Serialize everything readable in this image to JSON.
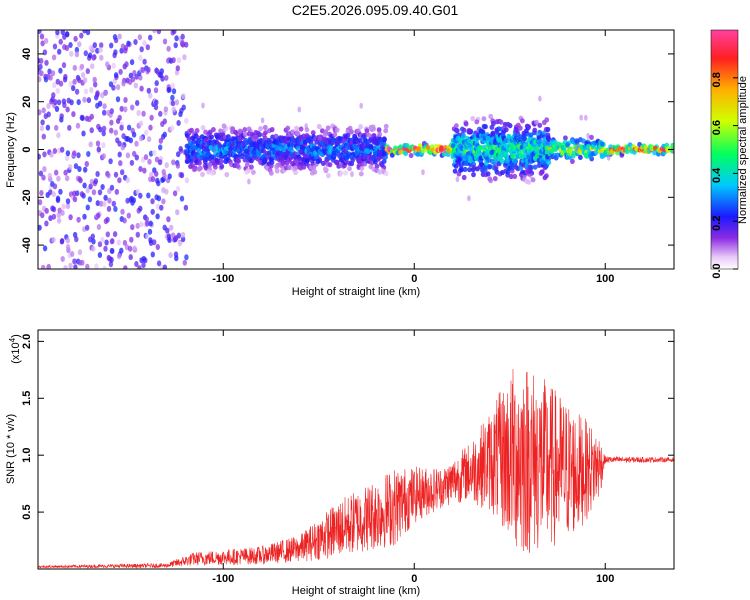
{
  "title": "C2E5.2026.095.09.40.G01",
  "colors": {
    "snr_line": "#ee2222",
    "axes": "#000000",
    "background": "#ffffff"
  },
  "chart_data": [
    {
      "type": "heatmap",
      "name": "spectrogram",
      "xlabel": "Height of straight line (km)",
      "ylabel": "Frequency (Hz)",
      "xlim": [
        -197,
        136
      ],
      "ylim": [
        -50,
        50
      ],
      "xticks": [
        -100,
        0,
        100
      ],
      "yticks": [
        -40,
        -20,
        0,
        20,
        40
      ],
      "colorbar": {
        "label": "Normalized spectral amplitude",
        "range": [
          0,
          1
        ],
        "ticks": [
          0.0,
          0.2,
          0.4,
          0.6,
          0.8
        ]
      },
      "regions": [
        {
          "x": [
            -197,
            -120
          ],
          "description_value": "noise",
          "freq_spread": 50,
          "amplitude": 0.15
        },
        {
          "x": [
            -120,
            -15
          ],
          "freq_spread": 8,
          "amplitude": 0.3
        },
        {
          "x": [
            -15,
            20
          ],
          "freq_spread": 2,
          "amplitude": 0.9
        },
        {
          "x": [
            20,
            70
          ],
          "freq_spread": 10,
          "amplitude": 0.45
        },
        {
          "x": [
            70,
            100
          ],
          "freq_spread": 4,
          "amplitude": 0.6
        },
        {
          "x": [
            100,
            136
          ],
          "freq_spread": 2,
          "amplitude": 0.8
        }
      ]
    },
    {
      "type": "line",
      "name": "snr",
      "xlabel": "Height of straight line (km)",
      "ylabel": "SNR (10 * v/v)",
      "multiplier_label": "(x10",
      "multiplier_exp": "4",
      "multiplier_close": ")",
      "xlim": [
        -197,
        136
      ],
      "ylim": [
        0,
        2.1
      ],
      "xticks": [
        -100,
        0,
        100
      ],
      "yticks": [
        0.5,
        1.0,
        1.5,
        2.0
      ],
      "envelope": [
        {
          "x": -197,
          "mean": 0.02,
          "amp": 0.01
        },
        {
          "x": -130,
          "mean": 0.03,
          "amp": 0.02
        },
        {
          "x": -115,
          "mean": 0.09,
          "amp": 0.06
        },
        {
          "x": -80,
          "mean": 0.12,
          "amp": 0.08
        },
        {
          "x": -60,
          "mean": 0.18,
          "amp": 0.12
        },
        {
          "x": -40,
          "mean": 0.35,
          "amp": 0.25
        },
        {
          "x": -25,
          "mean": 0.45,
          "amp": 0.3
        },
        {
          "x": -10,
          "mean": 0.55,
          "amp": 0.35
        },
        {
          "x": 0,
          "mean": 0.65,
          "amp": 0.25
        },
        {
          "x": 15,
          "mean": 0.72,
          "amp": 0.18
        },
        {
          "x": 28,
          "mean": 0.85,
          "amp": 0.25
        },
        {
          "x": 40,
          "mean": 0.95,
          "amp": 0.45
        },
        {
          "x": 55,
          "mean": 1.0,
          "amp": 0.9
        },
        {
          "x": 70,
          "mean": 0.9,
          "amp": 0.75
        },
        {
          "x": 85,
          "mean": 0.85,
          "amp": 0.55
        },
        {
          "x": 97,
          "mean": 0.9,
          "amp": 0.3
        },
        {
          "x": 100,
          "mean": 0.96,
          "amp": 0.03
        },
        {
          "x": 136,
          "mean": 0.96,
          "amp": 0.02
        }
      ]
    }
  ]
}
